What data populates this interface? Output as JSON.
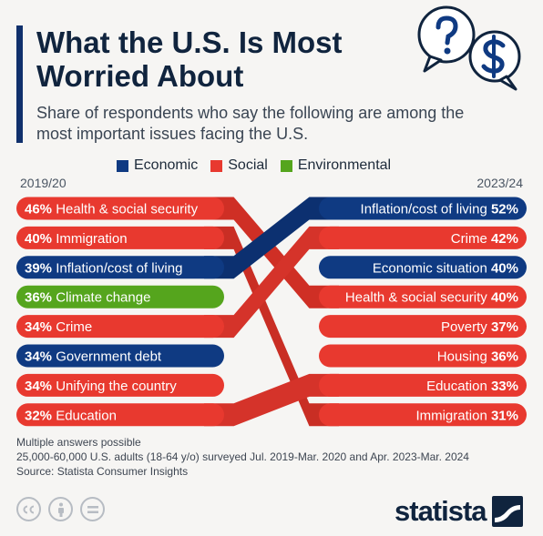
{
  "header": {
    "title": "What the U.S. Is Most Worried About",
    "subtitle": "Share of respondents who say the following are among the most important issues facing the U.S."
  },
  "legend": [
    {
      "label": "Economic",
      "color": "#0f3a82"
    },
    {
      "label": "Social",
      "color": "#e8392f"
    },
    {
      "label": "Environmental",
      "color": "#55a51d"
    }
  ],
  "chart_data": {
    "type": "slope",
    "left_label": "2019/20",
    "right_label": "2023/24",
    "unit": "%",
    "left": [
      {
        "issue": "Health & social security",
        "value": 46,
        "category": "Social"
      },
      {
        "issue": "Immigration",
        "value": 40,
        "category": "Social"
      },
      {
        "issue": "Inflation/cost of living",
        "value": 39,
        "category": "Economic"
      },
      {
        "issue": "Climate change",
        "value": 36,
        "category": "Environmental"
      },
      {
        "issue": "Crime",
        "value": 34,
        "category": "Social"
      },
      {
        "issue": "Government debt",
        "value": 34,
        "category": "Economic"
      },
      {
        "issue": "Unifying the country",
        "value": 34,
        "category": "Social"
      },
      {
        "issue": "Education",
        "value": 32,
        "category": "Social"
      }
    ],
    "right": [
      {
        "issue": "Inflation/cost of living",
        "value": 52,
        "category": "Economic"
      },
      {
        "issue": "Crime",
        "value": 42,
        "category": "Social"
      },
      {
        "issue": "Economic situation",
        "value": 40,
        "category": "Economic"
      },
      {
        "issue": "Health & social security",
        "value": 40,
        "category": "Social"
      },
      {
        "issue": "Poverty",
        "value": 37,
        "category": "Social"
      },
      {
        "issue": "Housing",
        "value": 36,
        "category": "Social"
      },
      {
        "issue": "Education",
        "value": 33,
        "category": "Social"
      },
      {
        "issue": "Immigration",
        "value": 31,
        "category": "Social"
      }
    ],
    "links": [
      {
        "issue": "Health & social security",
        "color": "#e8392f",
        "shade": "#cf2f25"
      },
      {
        "issue": "Immigration",
        "color": "#e8392f",
        "shade": "#c92e24"
      },
      {
        "issue": "Inflation/cost of living",
        "color": "#0f3a82",
        "shade": "#0c3070"
      },
      {
        "issue": "Crime",
        "color": "#e8392f",
        "shade": "#d5332a"
      },
      {
        "issue": "Education",
        "color": "#e8392f",
        "shade": "#d5332a"
      }
    ]
  },
  "footer": {
    "note": "Multiple answers possible",
    "survey": "25,000-60,000 U.S. adults (18-64 y/o) surveyed Jul. 2019-Mar. 2020 and Apr. 2023-Mar. 2024",
    "source": "Source: Statista Consumer Insights"
  },
  "brand": {
    "name": "statista"
  },
  "icons": {
    "header": [
      "question-bubble-icon",
      "dollar-bubble-icon"
    ],
    "license": [
      "creative-commons-icon",
      "attribution-icon",
      "no-derivatives-icon"
    ]
  }
}
